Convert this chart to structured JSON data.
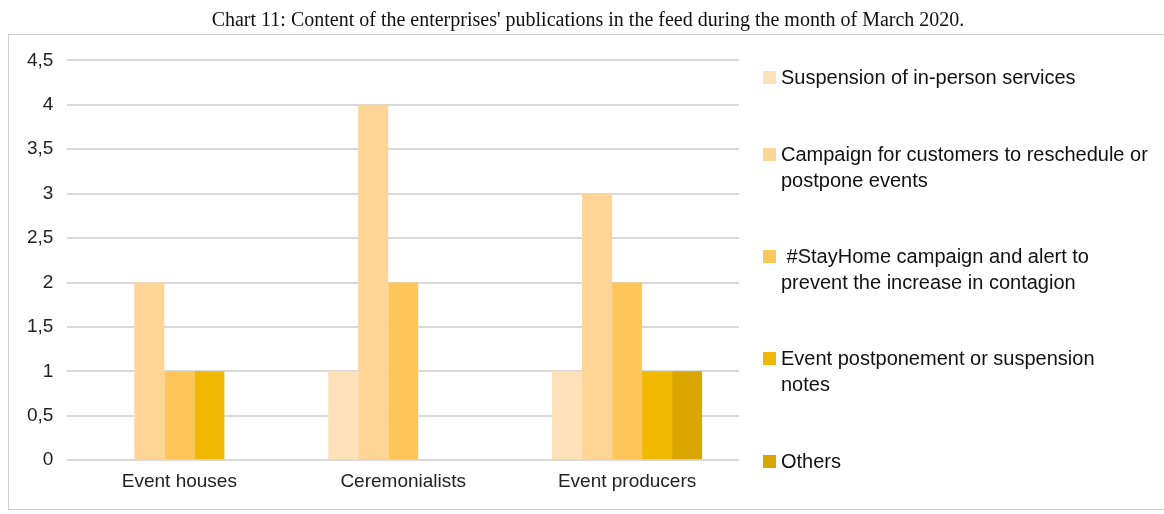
{
  "chart_data": {
    "type": "bar",
    "title": "Chart 11: Content of the  enterprises' publications in  the feed during the month of March 2020.",
    "categories": [
      "Event houses",
      "Ceremonialists",
      "Event producers"
    ],
    "series": [
      {
        "name": "Suspension of in-person services",
        "color": "#fee0b9",
        "values": [
          null,
          1,
          1
        ]
      },
      {
        "name": "Campaign for customers to reschedule or postpone events",
        "color": "#fed595",
        "values": [
          2,
          4,
          3
        ]
      },
      {
        "name": " #StayHome campaign and alert to prevent the increase in contagion",
        "color": "#fec659",
        "values": [
          1,
          2,
          2
        ]
      },
      {
        "name": "Event postponement or suspension notes",
        "color": "#f2b700",
        "values": [
          1,
          null,
          1
        ]
      },
      {
        "name": "Others",
        "color": "#dba500",
        "values": [
          null,
          null,
          1
        ]
      }
    ],
    "ylim": [
      0,
      4.5
    ],
    "yticks": [
      0,
      {
        "value": 0.5,
        "label": "0,5"
      },
      1,
      {
        "value": 1.5,
        "label": "1,5"
      },
      2,
      {
        "value": 2.5,
        "label": "2,5"
      },
      3,
      {
        "value": 3.5,
        "label": "3,5"
      },
      4,
      {
        "value": 4.5,
        "label": "4,5"
      }
    ],
    "grid": "y",
    "legend": "right"
  }
}
